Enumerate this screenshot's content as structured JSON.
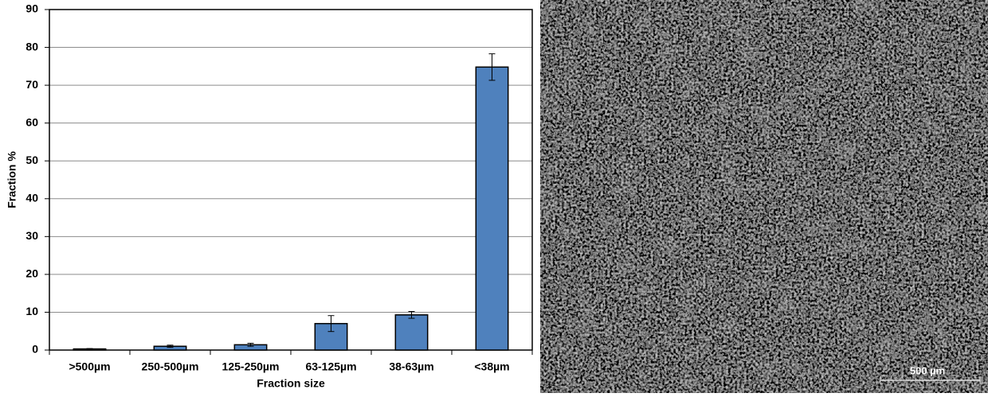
{
  "chart_data": {
    "type": "bar",
    "x_label": "Fraction size",
    "y_label": "Fraction %",
    "categories": [
      ">500µm",
      "250-500µm",
      "125-250µm",
      "63-125µm",
      "38-63µm",
      "<38µm"
    ],
    "values": [
      0.3,
      1.0,
      1.4,
      7.0,
      9.3,
      74.8
    ],
    "errors": [
      0.1,
      0.3,
      0.4,
      2.1,
      0.9,
      3.5
    ],
    "color": "#4f81bd",
    "ylim": [
      0,
      90
    ],
    "yticks": [
      0,
      10,
      20,
      30,
      40,
      50,
      60,
      70,
      80,
      90
    ],
    "grid": true
  },
  "image": {
    "scale_bar_label": "500 µm"
  }
}
